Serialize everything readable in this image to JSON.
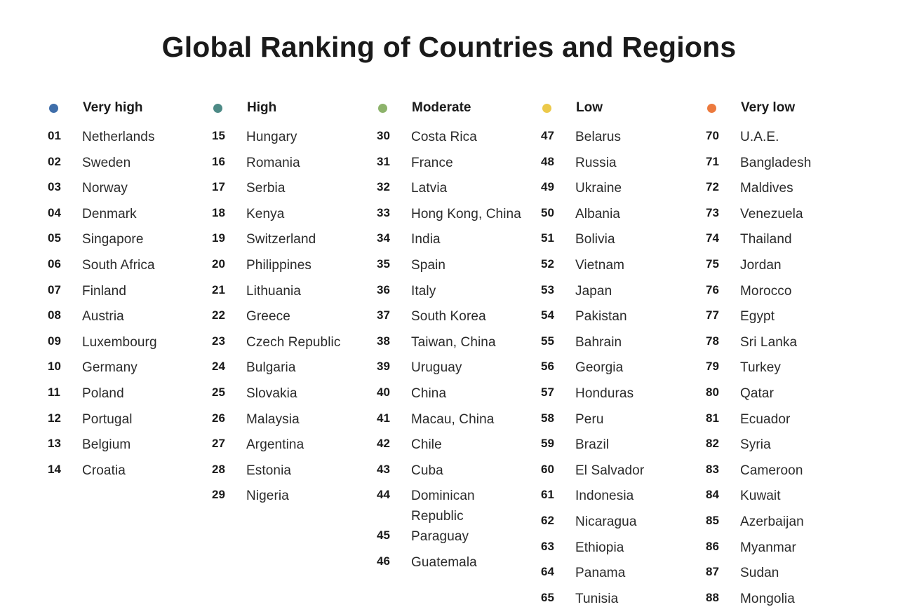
{
  "title": "Global Ranking of Countries and Regions",
  "columns": [
    {
      "label": "Very high",
      "color": "#3f6eaa",
      "items": [
        {
          "rank": "01",
          "name": "Netherlands"
        },
        {
          "rank": "02",
          "name": "Sweden"
        },
        {
          "rank": "03",
          "name": "Norway"
        },
        {
          "rank": "04",
          "name": "Denmark"
        },
        {
          "rank": "05",
          "name": "Singapore"
        },
        {
          "rank": "06",
          "name": "South Africa"
        },
        {
          "rank": "07",
          "name": "Finland"
        },
        {
          "rank": "08",
          "name": "Austria"
        },
        {
          "rank": "09",
          "name": "Luxembourg"
        },
        {
          "rank": "10",
          "name": "Germany"
        },
        {
          "rank": "11",
          "name": "Poland"
        },
        {
          "rank": "12",
          "name": "Portugal"
        },
        {
          "rank": "13",
          "name": "Belgium"
        },
        {
          "rank": "14",
          "name": "Croatia"
        }
      ]
    },
    {
      "label": "High",
      "color": "#4d8a86",
      "items": [
        {
          "rank": "15",
          "name": "Hungary"
        },
        {
          "rank": "16",
          "name": "Romania"
        },
        {
          "rank": "17",
          "name": "Serbia"
        },
        {
          "rank": "18",
          "name": "Kenya"
        },
        {
          "rank": "19",
          "name": "Switzerland"
        },
        {
          "rank": "20",
          "name": "Philippines"
        },
        {
          "rank": "21",
          "name": "Lithuania"
        },
        {
          "rank": "22",
          "name": "Greece"
        },
        {
          "rank": "23",
          "name": "Czech Republic"
        },
        {
          "rank": "24",
          "name": "Bulgaria"
        },
        {
          "rank": "25",
          "name": "Slovakia"
        },
        {
          "rank": "26",
          "name": "Malaysia"
        },
        {
          "rank": "27",
          "name": "Argentina"
        },
        {
          "rank": "28",
          "name": "Estonia"
        },
        {
          "rank": "29",
          "name": "Nigeria"
        }
      ]
    },
    {
      "label": "Moderate",
      "color": "#8db36b",
      "items": [
        {
          "rank": "30",
          "name": "Costa Rica"
        },
        {
          "rank": "31",
          "name": "France"
        },
        {
          "rank": "32",
          "name": "Latvia"
        },
        {
          "rank": "33",
          "name": "Hong Kong, China"
        },
        {
          "rank": "34",
          "name": "India"
        },
        {
          "rank": "35",
          "name": "Spain"
        },
        {
          "rank": "36",
          "name": "Italy"
        },
        {
          "rank": "37",
          "name": "South Korea"
        },
        {
          "rank": "38",
          "name": "Taiwan, China"
        },
        {
          "rank": "39",
          "name": "Uruguay"
        },
        {
          "rank": "40",
          "name": "China"
        },
        {
          "rank": "41",
          "name": "Macau, China"
        },
        {
          "rank": "42",
          "name": "Chile"
        },
        {
          "rank": "43",
          "name": "Cuba"
        },
        {
          "rank": "44",
          "name": "Dominican Republic"
        },
        {
          "rank": "45",
          "name": "Paraguay"
        },
        {
          "rank": "46",
          "name": "Guatemala"
        }
      ]
    },
    {
      "label": "Low",
      "color": "#ecc94a",
      "items": [
        {
          "rank": "47",
          "name": "Belarus"
        },
        {
          "rank": "48",
          "name": "Russia"
        },
        {
          "rank": "49",
          "name": "Ukraine"
        },
        {
          "rank": "50",
          "name": "Albania"
        },
        {
          "rank": "51",
          "name": "Bolivia"
        },
        {
          "rank": "52",
          "name": "Vietnam"
        },
        {
          "rank": "53",
          "name": "Japan"
        },
        {
          "rank": "54",
          "name": "Pakistan"
        },
        {
          "rank": "55",
          "name": "Bahrain"
        },
        {
          "rank": "56",
          "name": "Georgia"
        },
        {
          "rank": "57",
          "name": "Honduras"
        },
        {
          "rank": "58",
          "name": "Peru"
        },
        {
          "rank": "59",
          "name": "Brazil"
        },
        {
          "rank": "60",
          "name": "El Salvador"
        },
        {
          "rank": "61",
          "name": "Indonesia"
        },
        {
          "rank": "62",
          "name": "Nicaragua"
        },
        {
          "rank": "63",
          "name": "Ethiopia"
        },
        {
          "rank": "64",
          "name": "Panama"
        },
        {
          "rank": "65",
          "name": "Tunisia"
        }
      ]
    },
    {
      "label": "Very low",
      "color": "#ec7a3e",
      "items": [
        {
          "rank": "70",
          "name": "U.A.E."
        },
        {
          "rank": "71",
          "name": "Bangladesh"
        },
        {
          "rank": "72",
          "name": "Maldives"
        },
        {
          "rank": "73",
          "name": "Venezuela"
        },
        {
          "rank": "74",
          "name": "Thailand"
        },
        {
          "rank": "75",
          "name": "Jordan"
        },
        {
          "rank": "76",
          "name": "Morocco"
        },
        {
          "rank": "77",
          "name": "Egypt"
        },
        {
          "rank": "78",
          "name": "Sri Lanka"
        },
        {
          "rank": "79",
          "name": "Turkey"
        },
        {
          "rank": "80",
          "name": "Qatar"
        },
        {
          "rank": "81",
          "name": "Ecuador"
        },
        {
          "rank": "82",
          "name": "Syria"
        },
        {
          "rank": "83",
          "name": "Cameroon"
        },
        {
          "rank": "84",
          "name": "Kuwait"
        },
        {
          "rank": "85",
          "name": "Azerbaijan"
        },
        {
          "rank": "86",
          "name": "Myanmar"
        },
        {
          "rank": "87",
          "name": "Sudan"
        },
        {
          "rank": "88",
          "name": "Mongolia"
        }
      ]
    }
  ]
}
